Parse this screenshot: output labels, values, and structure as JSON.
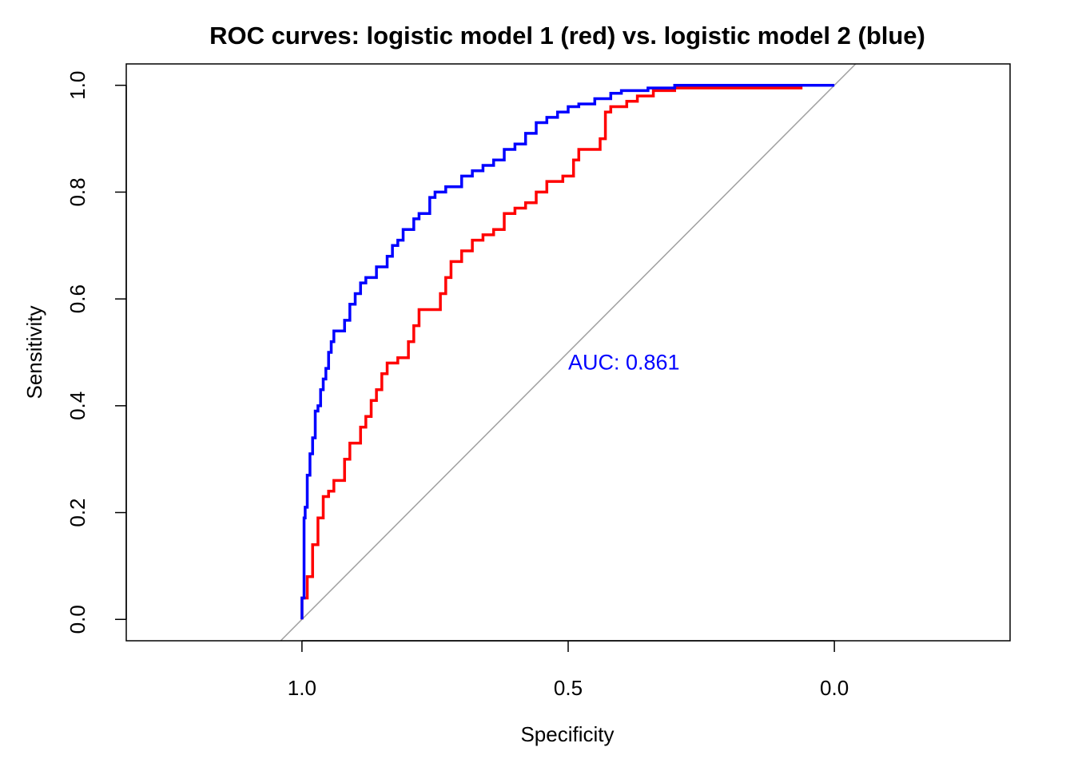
{
  "chart_data": {
    "type": "line",
    "title": "ROC curves: logistic model 1 (red) vs. logistic model 2 (blue)",
    "xlabel": "Specificity",
    "ylabel": "Sensitivity",
    "x_reversed": true,
    "xlim": [
      1.33,
      -0.33
    ],
    "ylim": [
      -0.04,
      1.04
    ],
    "x_ticks": [
      "1.0",
      "0.5",
      "0.0"
    ],
    "x_tick_values": [
      1.0,
      0.5,
      0.0
    ],
    "y_ticks": [
      "0.0",
      "0.2",
      "0.4",
      "0.6",
      "0.8",
      "1.0"
    ],
    "y_tick_values": [
      0.0,
      0.2,
      0.4,
      0.6,
      0.8,
      1.0
    ],
    "grid": false,
    "reference_line": {
      "color": "#a0a0a0",
      "from": [
        1.04,
        -0.04
      ],
      "to": [
        -0.04,
        1.04
      ]
    },
    "annotation": {
      "text": "AUC: 0.861",
      "x": 0.5,
      "y": 0.48,
      "color": "#0000ff"
    },
    "series": [
      {
        "color": "#ff0000",
        "points": [
          [
            1.0,
            0.0
          ],
          [
            0.99,
            0.04
          ],
          [
            0.99,
            0.06
          ],
          [
            0.98,
            0.08
          ],
          [
            0.97,
            0.14
          ],
          [
            0.97,
            0.18
          ],
          [
            0.96,
            0.19
          ],
          [
            0.95,
            0.23
          ],
          [
            0.94,
            0.24
          ],
          [
            0.92,
            0.26
          ],
          [
            0.91,
            0.3
          ],
          [
            0.89,
            0.33
          ],
          [
            0.88,
            0.36
          ],
          [
            0.87,
            0.38
          ],
          [
            0.86,
            0.41
          ],
          [
            0.85,
            0.43
          ],
          [
            0.84,
            0.46
          ],
          [
            0.82,
            0.48
          ],
          [
            0.8,
            0.49
          ],
          [
            0.79,
            0.52
          ],
          [
            0.78,
            0.55
          ],
          [
            0.76,
            0.58
          ],
          [
            0.74,
            0.58
          ],
          [
            0.73,
            0.61
          ],
          [
            0.72,
            0.64
          ],
          [
            0.7,
            0.67
          ],
          [
            0.68,
            0.69
          ],
          [
            0.66,
            0.71
          ],
          [
            0.64,
            0.72
          ],
          [
            0.62,
            0.73
          ],
          [
            0.6,
            0.76
          ],
          [
            0.58,
            0.77
          ],
          [
            0.56,
            0.78
          ],
          [
            0.54,
            0.8
          ],
          [
            0.51,
            0.82
          ],
          [
            0.49,
            0.83
          ],
          [
            0.48,
            0.86
          ],
          [
            0.46,
            0.88
          ],
          [
            0.44,
            0.88
          ],
          [
            0.43,
            0.9
          ],
          [
            0.42,
            0.95
          ],
          [
            0.39,
            0.96
          ],
          [
            0.37,
            0.97
          ],
          [
            0.34,
            0.98
          ],
          [
            0.3,
            0.99
          ],
          [
            0.28,
            0.995
          ],
          [
            0.2,
            0.995
          ],
          [
            0.14,
            0.995
          ],
          [
            0.06,
            0.995
          ]
        ]
      },
      {
        "color": "#0000ff",
        "points": [
          [
            1.0,
            0.0
          ],
          [
            0.996,
            0.04
          ],
          [
            0.994,
            0.19
          ],
          [
            0.99,
            0.21
          ],
          [
            0.985,
            0.27
          ],
          [
            0.98,
            0.31
          ],
          [
            0.975,
            0.34
          ],
          [
            0.97,
            0.39
          ],
          [
            0.965,
            0.4
          ],
          [
            0.96,
            0.43
          ],
          [
            0.955,
            0.45
          ],
          [
            0.95,
            0.47
          ],
          [
            0.945,
            0.5
          ],
          [
            0.94,
            0.52
          ],
          [
            0.93,
            0.54
          ],
          [
            0.92,
            0.54
          ],
          [
            0.91,
            0.56
          ],
          [
            0.9,
            0.59
          ],
          [
            0.89,
            0.61
          ],
          [
            0.88,
            0.63
          ],
          [
            0.86,
            0.64
          ],
          [
            0.84,
            0.66
          ],
          [
            0.83,
            0.68
          ],
          [
            0.82,
            0.7
          ],
          [
            0.81,
            0.71
          ],
          [
            0.79,
            0.73
          ],
          [
            0.78,
            0.75
          ],
          [
            0.76,
            0.76
          ],
          [
            0.75,
            0.79
          ],
          [
            0.73,
            0.8
          ],
          [
            0.7,
            0.81
          ],
          [
            0.68,
            0.83
          ],
          [
            0.66,
            0.84
          ],
          [
            0.64,
            0.85
          ],
          [
            0.62,
            0.86
          ],
          [
            0.6,
            0.88
          ],
          [
            0.58,
            0.89
          ],
          [
            0.56,
            0.91
          ],
          [
            0.54,
            0.93
          ],
          [
            0.52,
            0.94
          ],
          [
            0.5,
            0.95
          ],
          [
            0.48,
            0.96
          ],
          [
            0.45,
            0.965
          ],
          [
            0.42,
            0.975
          ],
          [
            0.4,
            0.985
          ],
          [
            0.35,
            0.99
          ],
          [
            0.3,
            0.995
          ],
          [
            0.2,
            1.0
          ],
          [
            0.1,
            1.0
          ],
          [
            0.0,
            1.0
          ]
        ]
      }
    ]
  }
}
